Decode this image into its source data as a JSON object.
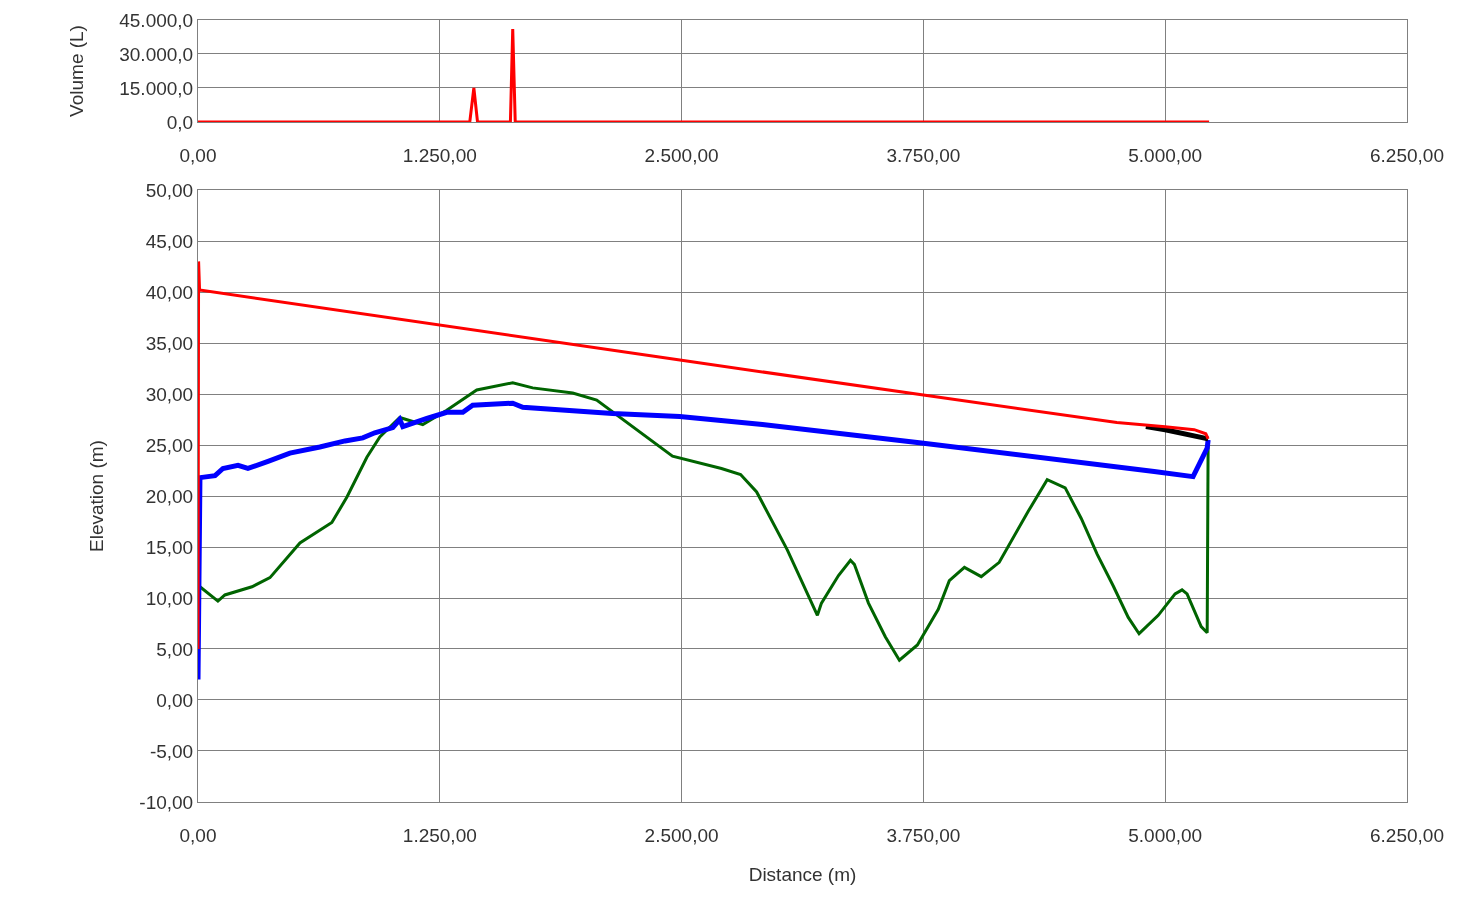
{
  "chart_data": [
    {
      "type": "line",
      "ylabel": "Volume (L)",
      "grid": true,
      "marker": "none",
      "xlim": [
        0,
        6250
      ],
      "xticks": [
        {
          "value": 0,
          "label": "0,00"
        },
        {
          "value": 1250,
          "label": "1.250,00"
        },
        {
          "value": 2500,
          "label": "2.500,00"
        },
        {
          "value": 3750,
          "label": "3.750,00"
        },
        {
          "value": 5000,
          "label": "5.000,00"
        },
        {
          "value": 6250,
          "label": "6.250,00"
        }
      ],
      "ylim": [
        0,
        45000
      ],
      "yticks": [
        {
          "value": 0,
          "label": "0,0"
        },
        {
          "value": 15000,
          "label": "15.000,0"
        },
        {
          "value": 30000,
          "label": "30.000,0"
        },
        {
          "value": 45000,
          "label": "45.000,0"
        }
      ],
      "series": [
        {
          "color": "#ff0000",
          "x": [
            0,
            1405,
            1426,
            1445,
            1615,
            1627,
            1640,
            5227
          ],
          "values": [
            0,
            0,
            15000,
            0,
            0,
            41000,
            0,
            0
          ]
        }
      ]
    },
    {
      "type": "line",
      "xlabel": "Distance (m)",
      "ylabel": "Elevation (m)",
      "grid": true,
      "marker": "none",
      "xlim": [
        0,
        6250
      ],
      "xticks": [
        {
          "value": 0,
          "label": "0,00"
        },
        {
          "value": 1250,
          "label": "1.250,00"
        },
        {
          "value": 2500,
          "label": "2.500,00"
        },
        {
          "value": 3750,
          "label": "3.750,00"
        },
        {
          "value": 5000,
          "label": "5.000,00"
        },
        {
          "value": 6250,
          "label": "6.250,00"
        }
      ],
      "ylim": [
        -10,
        50
      ],
      "yticks": [
        {
          "value": -10,
          "label": "-10,00"
        },
        {
          "value": -5,
          "label": "-5,00"
        },
        {
          "value": 0,
          "label": "0,00"
        },
        {
          "value": 5,
          "label": "5,00"
        },
        {
          "value": 10,
          "label": "10,00"
        },
        {
          "value": 15,
          "label": "15,00"
        },
        {
          "value": 20,
          "label": "20,00"
        },
        {
          "value": 25,
          "label": "25,00"
        },
        {
          "value": 30,
          "label": "30,00"
        },
        {
          "value": 35,
          "label": "35,00"
        },
        {
          "value": 40,
          "label": "40,00"
        },
        {
          "value": 45,
          "label": "45,00"
        },
        {
          "value": 50,
          "label": "50,00"
        }
      ],
      "series": [
        {
          "color": "#006400",
          "x": [
            0,
            10,
            103,
            139,
            279,
            372,
            527,
            692,
            770,
            873,
            940,
            1043,
            1110,
            1162,
            1286,
            1441,
            1627,
            1730,
            1937,
            2061,
            2453,
            2706,
            2805,
            2888,
            3047,
            3202,
            3223,
            3311,
            3373,
            3393,
            3466,
            3553,
            3626,
            3719,
            3827,
            3884,
            3962,
            4049,
            4142,
            4292,
            4390,
            4483,
            4566,
            4648,
            4731,
            4809,
            4865,
            4964,
            5051,
            5087,
            5113,
            5186,
            5217,
            5222
          ],
          "values": [
            11.5,
            11.1,
            9.7,
            10.3,
            11.1,
            12.0,
            15.4,
            17.4,
            19.9,
            23.8,
            25.8,
            27.7,
            27.3,
            27.0,
            28.4,
            30.4,
            31.1,
            30.6,
            30.1,
            29.4,
            23.9,
            22.7,
            22.1,
            20.4,
            14.7,
            8.3,
            9.5,
            12.2,
            13.7,
            13.3,
            9.5,
            6.2,
            3.9,
            5.4,
            8.9,
            11.7,
            13.0,
            12.1,
            13.5,
            18.5,
            21.6,
            20.8,
            17.8,
            14.3,
            11.2,
            8.1,
            6.5,
            8.3,
            10.4,
            10.8,
            10.4,
            7.2,
            6.6,
            25.5
          ]
        },
        {
          "color": "#0000ff",
          "x": [
            0,
            10,
            88,
            129,
            207,
            258,
            362,
            475,
            630,
            760,
            852,
            914,
            1007,
            1043,
            1059,
            1183,
            1286,
            1369,
            1420,
            1627,
            1679,
            2143,
            2490,
            2918,
            3740,
            4943,
            5144,
            5217,
            5222
          ],
          "values": [
            2.0,
            21.8,
            22.0,
            22.7,
            23.0,
            22.7,
            23.4,
            24.2,
            24.8,
            25.4,
            25.7,
            26.2,
            26.7,
            27.5,
            26.8,
            27.6,
            28.2,
            28.2,
            28.9,
            29.1,
            28.7,
            28.1,
            27.8,
            27.0,
            25.2,
            22.4,
            21.9,
            24.7,
            25.5
          ]
        },
        {
          "color": "#000000",
          "x": [
            4900,
            5000,
            5222
          ],
          "values": [
            26.8,
            26.5,
            25.6
          ]
        },
        {
          "color": "#ff0000",
          "x": [
            0,
            3,
            8,
            2500,
            3750,
            4750,
            5000,
            5150,
            5210,
            5222
          ],
          "values": [
            5.0,
            43.0,
            40.2,
            33.3,
            29.9,
            27.2,
            26.8,
            26.5,
            26.1,
            25.6
          ]
        }
      ]
    }
  ]
}
